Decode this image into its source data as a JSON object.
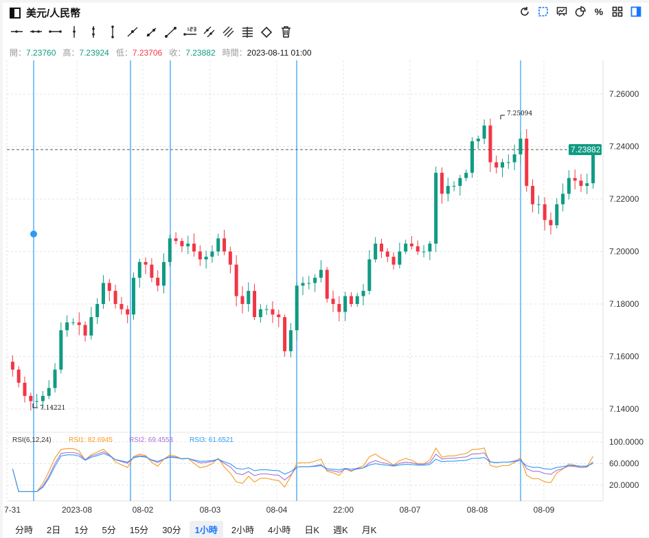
{
  "header": {
    "title": "美元/人民幣",
    "icons": [
      "refresh-icon",
      "note-icon",
      "chart-board-icon",
      "pie-chart-icon",
      "percent-icon",
      "grid-icon",
      "layout-panel-icon"
    ],
    "percent_glyph": "%"
  },
  "tools": [
    "horizontal-ray",
    "horizontal-segment",
    "horizontal-line",
    "vertical-ray",
    "vertical-segment",
    "vertical-line",
    "ray",
    "segment",
    "line",
    "price-line",
    "parallel-line",
    "price-channel",
    "fib-lines",
    "eraser",
    "trash"
  ],
  "ohlc": {
    "open_label": "開：",
    "open": "7.23760",
    "high_label": "高：",
    "high": "7.23924",
    "low_label": "低：",
    "low": "7.23706",
    "close_label": "收：",
    "close": "7.23882",
    "time_label": "時間：",
    "time": "2023-08-11 01:00"
  },
  "rsi": {
    "title": "RSI(6,12,24)",
    "rsi1": "RSI1: 82.6945",
    "rsi2": "RSI2: 69.4553",
    "rsi3": "RSI3: 61.6521"
  },
  "colors": {
    "up": "#0f9b83",
    "down": "#f23645",
    "rsi1": "#f59a1b",
    "rsi2": "#a66fd6",
    "rsi3": "#2b9af3",
    "marker": "#2b9af3"
  },
  "tabs": [
    "分時",
    "2日",
    "1分",
    "5分",
    "15分",
    "30分",
    "1小時",
    "2小時",
    "4小時",
    "日K",
    "週K",
    "月K"
  ],
  "active_tab": "1小時",
  "chart_data": {
    "type": "candlestick",
    "title": "美元/人民幣",
    "ylim": [
      7.13,
      7.27
    ],
    "y_ticks": [
      "7.26000",
      "7.24000",
      "7.22000",
      "7.20000",
      "7.18000",
      "7.16000",
      "7.14000"
    ],
    "x_ticks": [
      "7-31",
      "2023-08",
      "08-02",
      "08-03",
      "08-04",
      "22:00",
      "08-07",
      "08-08",
      "08-09"
    ],
    "rsi_ticks": [
      "100.0000",
      "60.0000",
      "20.0000"
    ],
    "last_price": "7.23882",
    "max_label": "7.25094",
    "min_label": "7.14221",
    "closes": [
      7.155,
      7.15,
      7.145,
      7.143,
      7.143,
      7.145,
      7.148,
      7.155,
      7.17,
      7.173,
      7.173,
      7.172,
      7.168,
      7.175,
      7.18,
      7.188,
      7.185,
      7.18,
      7.178,
      7.176,
      7.19,
      7.196,
      7.195,
      7.19,
      7.187,
      7.196,
      7.205,
      7.204,
      7.202,
      7.203,
      7.2,
      7.197,
      7.198,
      7.2,
      7.205,
      7.2,
      7.195,
      7.183,
      7.18,
      7.185,
      7.175,
      7.178,
      7.178,
      7.176,
      7.175,
      7.162,
      7.17,
      7.187,
      7.188,
      7.188,
      7.19,
      7.193,
      7.182,
      7.18,
      7.177,
      7.183,
      7.18,
      7.183,
      7.185,
      7.197,
      7.203,
      7.2,
      7.198,
      7.195,
      7.2,
      7.203,
      7.202,
      7.2,
      7.2,
      7.203,
      7.23,
      7.222,
      7.225,
      7.225,
      7.228,
      7.23,
      7.242,
      7.243,
      7.248,
      7.234,
      7.232,
      7.234,
      7.234,
      7.237,
      7.243,
      7.225,
      7.218,
      7.218,
      7.212,
      7.21,
      7.218,
      7.222,
      7.228,
      7.227,
      7.225,
      7.226,
      7.2388
    ]
  }
}
